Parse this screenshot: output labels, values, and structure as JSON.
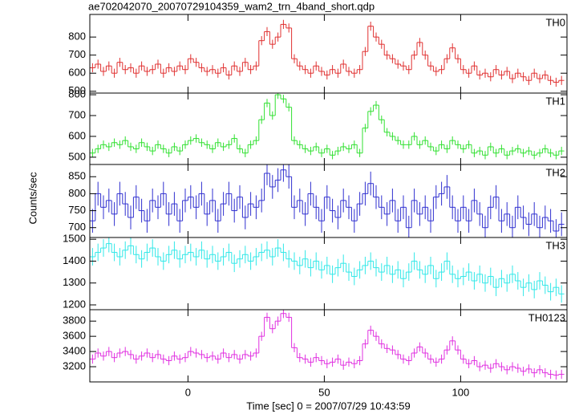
{
  "chart_data": [
    {
      "type": "errorbar-step",
      "title": "ae702042070_20070729104359_wam2_trn_4band_short.qdp",
      "series": [
        {
          "name": "TH0",
          "color": "#e03030",
          "error": 25,
          "values": [
            630,
            650,
            610,
            640,
            600,
            660,
            620,
            630,
            600,
            640,
            610,
            620,
            650,
            600,
            630,
            610,
            640,
            620,
            680,
            660,
            630,
            610,
            620,
            600,
            630,
            590,
            640,
            610,
            660,
            620,
            640,
            780,
            830,
            760,
            800,
            870,
            850,
            680,
            640,
            620,
            600,
            640,
            610,
            590,
            620,
            600,
            650,
            610,
            600,
            620,
            720,
            860,
            800,
            760,
            700,
            680,
            650,
            640,
            620,
            700,
            770,
            700,
            640,
            610,
            620,
            680,
            740,
            680,
            620,
            600,
            640,
            590,
            600,
            580,
            620,
            590,
            610,
            570,
            600,
            580,
            560,
            600,
            570,
            590,
            560,
            550,
            560
          ]
        }
      ],
      "x": [
        -35,
        -33,
        -31,
        -29,
        -27,
        -25,
        -23,
        -21,
        -19,
        -17,
        -15,
        -13,
        -11,
        -9,
        -7,
        -5,
        -3,
        -1,
        1,
        3,
        5,
        7,
        9,
        11,
        13,
        15,
        17,
        19,
        21,
        23,
        25,
        27,
        29,
        31,
        33,
        35,
        37,
        39,
        41,
        43,
        45,
        47,
        49,
        51,
        53,
        55,
        57,
        59,
        61,
        63,
        65,
        67,
        69,
        71,
        73,
        75,
        77,
        79,
        81,
        83,
        85,
        87,
        89,
        91,
        93,
        95,
        97,
        99,
        101,
        103,
        105,
        107,
        109,
        111,
        113,
        115,
        117,
        119,
        121,
        123,
        125,
        127,
        129,
        131,
        133,
        135,
        137
      ],
      "xlim": [
        -36,
        139
      ],
      "xticks": [
        0,
        50,
        100
      ],
      "ylim": [
        490,
        925
      ],
      "yticks": [
        500,
        600,
        700,
        800
      ]
    },
    {
      "type": "errorbar-step",
      "series": [
        {
          "name": "TH1",
          "color": "#30e030",
          "error": 20,
          "values": [
            520,
            540,
            560,
            550,
            570,
            560,
            580,
            550,
            540,
            570,
            550,
            530,
            560,
            540,
            520,
            550,
            530,
            560,
            580,
            590,
            570,
            560,
            540,
            570,
            550,
            560,
            590,
            540,
            520,
            560,
            580,
            680,
            760,
            700,
            800,
            780,
            740,
            580,
            560,
            540,
            530,
            550,
            520,
            540,
            510,
            530,
            550,
            540,
            560,
            520,
            640,
            720,
            750,
            680,
            620,
            600,
            580,
            560,
            560,
            600,
            560,
            580,
            550,
            530,
            560,
            540,
            580,
            560,
            540,
            560,
            520,
            530,
            510,
            550,
            520,
            540,
            510,
            530,
            540,
            520,
            530,
            510,
            520,
            540,
            520,
            510,
            530
          ]
        }
      ],
      "x": [
        -35,
        -33,
        -31,
        -29,
        -27,
        -25,
        -23,
        -21,
        -19,
        -17,
        -15,
        -13,
        -11,
        -9,
        -7,
        -5,
        -3,
        -1,
        1,
        3,
        5,
        7,
        9,
        11,
        13,
        15,
        17,
        19,
        21,
        23,
        25,
        27,
        29,
        31,
        33,
        35,
        37,
        39,
        41,
        43,
        45,
        47,
        49,
        51,
        53,
        55,
        57,
        59,
        61,
        63,
        65,
        67,
        69,
        71,
        73,
        75,
        77,
        79,
        81,
        83,
        85,
        87,
        89,
        91,
        93,
        95,
        97,
        99,
        101,
        103,
        105,
        107,
        109,
        111,
        113,
        115,
        117,
        119,
        121,
        123,
        125,
        127,
        129,
        131,
        133,
        135,
        137
      ],
      "xlim": [
        -36,
        139
      ],
      "xticks": [
        0,
        50,
        100
      ],
      "ylim": [
        465,
        808
      ],
      "yticks": [
        500,
        600,
        700,
        800
      ]
    },
    {
      "type": "errorbar-step",
      "ylabel": "Counts/sec",
      "series": [
        {
          "name": "TH2",
          "color": "#3030d0",
          "error": 35,
          "values": [
            720,
            800,
            760,
            780,
            740,
            800,
            770,
            730,
            790,
            750,
            720,
            780,
            760,
            800,
            740,
            770,
            720,
            780,
            790,
            760,
            800,
            740,
            780,
            720,
            770,
            800,
            750,
            790,
            730,
            770,
            760,
            780,
            860,
            820,
            840,
            870,
            850,
            760,
            780,
            740,
            800,
            760,
            720,
            790,
            750,
            730,
            780,
            760,
            720,
            770,
            800,
            830,
            790,
            760,
            740,
            780,
            720,
            760,
            700,
            780,
            740,
            760,
            720,
            790,
            800,
            820,
            760,
            720,
            760,
            720,
            780,
            740,
            700,
            760,
            790,
            720,
            740,
            700,
            760,
            730,
            710,
            740,
            700,
            730,
            720,
            690,
            710
          ]
        }
      ],
      "x": [
        -35,
        -33,
        -31,
        -29,
        -27,
        -25,
        -23,
        -21,
        -19,
        -17,
        -15,
        -13,
        -11,
        -9,
        -7,
        -5,
        -3,
        -1,
        1,
        3,
        5,
        7,
        9,
        11,
        13,
        15,
        17,
        19,
        21,
        23,
        25,
        27,
        29,
        31,
        33,
        35,
        37,
        39,
        41,
        43,
        45,
        47,
        49,
        51,
        53,
        55,
        57,
        59,
        61,
        63,
        65,
        67,
        69,
        71,
        73,
        75,
        77,
        79,
        81,
        83,
        85,
        87,
        89,
        91,
        93,
        95,
        97,
        99,
        101,
        103,
        105,
        107,
        109,
        111,
        113,
        115,
        117,
        119,
        121,
        123,
        125,
        127,
        129,
        131,
        133,
        135,
        137
      ],
      "xlim": [
        -36,
        139
      ],
      "xticks": [
        0,
        50,
        100
      ],
      "ylim": [
        671,
        886
      ],
      "yticks": [
        700,
        750,
        800,
        850
      ]
    },
    {
      "type": "errorbar-step",
      "series": [
        {
          "name": "TH3",
          "color": "#30e8e8",
          "error": 40,
          "values": [
            1420,
            1440,
            1460,
            1480,
            1440,
            1420,
            1450,
            1470,
            1430,
            1410,
            1440,
            1460,
            1420,
            1400,
            1430,
            1450,
            1410,
            1430,
            1440,
            1420,
            1450,
            1410,
            1430,
            1400,
            1420,
            1440,
            1390,
            1410,
            1430,
            1400,
            1420,
            1440,
            1450,
            1420,
            1460,
            1440,
            1410,
            1400,
            1380,
            1410,
            1370,
            1400,
            1360,
            1380,
            1340,
            1370,
            1390,
            1350,
            1330,
            1360,
            1380,
            1400,
            1370,
            1350,
            1380,
            1340,
            1360,
            1320,
            1350,
            1400,
            1360,
            1340,
            1380,
            1320,
            1350,
            1400,
            1340,
            1320,
            1330,
            1350,
            1310,
            1340,
            1300,
            1330,
            1280,
            1320,
            1300,
            1340,
            1310,
            1280,
            1300,
            1270,
            1310,
            1290,
            1260,
            1280,
            1250
          ]
        }
      ],
      "x": [
        -35,
        -33,
        -31,
        -29,
        -27,
        -25,
        -23,
        -21,
        -19,
        -17,
        -15,
        -13,
        -11,
        -9,
        -7,
        -5,
        -3,
        -1,
        1,
        3,
        5,
        7,
        9,
        11,
        13,
        15,
        17,
        19,
        21,
        23,
        25,
        27,
        29,
        31,
        33,
        35,
        37,
        39,
        41,
        43,
        45,
        47,
        49,
        51,
        53,
        55,
        57,
        59,
        61,
        63,
        65,
        67,
        69,
        71,
        73,
        75,
        77,
        79,
        81,
        83,
        85,
        87,
        89,
        91,
        93,
        95,
        97,
        99,
        101,
        103,
        105,
        107,
        109,
        111,
        113,
        115,
        117,
        119,
        121,
        123,
        125,
        127,
        129,
        131,
        133,
        135,
        137
      ],
      "xlim": [
        -36,
        139
      ],
      "xticks": [
        0,
        50,
        100
      ],
      "ylim": [
        1178,
        1508
      ],
      "yticks": [
        1200,
        1300,
        1400,
        1500
      ]
    },
    {
      "type": "errorbar-step",
      "xlabel": "Time [sec] 0 = 2007/07/29 10:43:59",
      "series": [
        {
          "name": "TH0123",
          "color": "#e030e0",
          "error": 60,
          "values": [
            3300,
            3380,
            3340,
            3400,
            3320,
            3380,
            3400,
            3360,
            3300,
            3340,
            3380,
            3320,
            3360,
            3300,
            3280,
            3340,
            3300,
            3320,
            3400,
            3380,
            3360,
            3320,
            3340,
            3300,
            3380,
            3320,
            3360,
            3300,
            3360,
            3340,
            3380,
            3600,
            3850,
            3700,
            3800,
            3900,
            3850,
            3450,
            3320,
            3300,
            3260,
            3320,
            3280,
            3240,
            3260,
            3300,
            3220,
            3260,
            3240,
            3280,
            3500,
            3680,
            3600,
            3500,
            3440,
            3420,
            3360,
            3300,
            3280,
            3380,
            3460,
            3380,
            3300,
            3260,
            3300,
            3420,
            3540,
            3420,
            3300,
            3240,
            3280,
            3200,
            3220,
            3180,
            3240,
            3200,
            3160,
            3200,
            3180,
            3140,
            3170,
            3120,
            3160,
            3120,
            3100,
            3090,
            3100
          ]
        }
      ],
      "x": [
        -35,
        -33,
        -31,
        -29,
        -27,
        -25,
        -23,
        -21,
        -19,
        -17,
        -15,
        -13,
        -11,
        -9,
        -7,
        -5,
        -3,
        -1,
        1,
        3,
        5,
        7,
        9,
        11,
        13,
        15,
        17,
        19,
        21,
        23,
        25,
        27,
        29,
        31,
        33,
        35,
        37,
        39,
        41,
        43,
        45,
        47,
        49,
        51,
        53,
        55,
        57,
        59,
        61,
        63,
        65,
        67,
        69,
        71,
        73,
        75,
        77,
        79,
        81,
        83,
        85,
        87,
        89,
        91,
        93,
        95,
        97,
        99,
        101,
        103,
        105,
        107,
        109,
        111,
        113,
        115,
        117,
        119,
        121,
        123,
        125,
        127,
        129,
        131,
        133,
        135,
        137
      ],
      "xlim": [
        -36,
        139
      ],
      "xticks": [
        0,
        50,
        100
      ],
      "ylim": [
        3000,
        3950
      ],
      "yticks": [
        3200,
        3400,
        3600,
        3800
      ]
    }
  ]
}
